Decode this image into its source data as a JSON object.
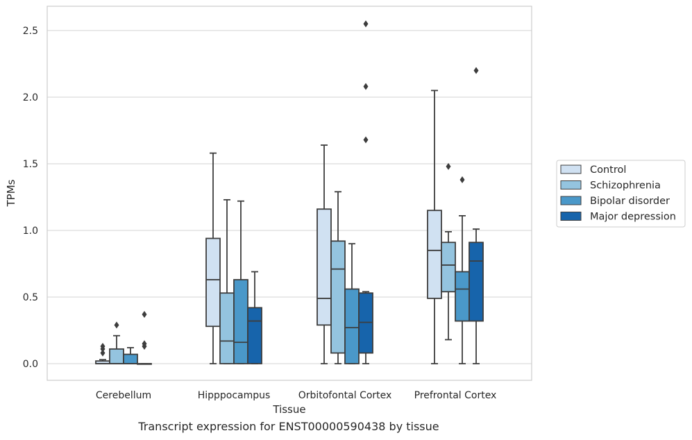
{
  "caption": "Transcript expression for ENST00000590438 by tissue",
  "chart_data": {
    "type": "box",
    "xlabel": "Tissue",
    "ylabel": "TPMs",
    "ylim": [
      -0.12,
      2.68
    ],
    "yticks": [
      0.0,
      0.5,
      1.0,
      1.5,
      2.0,
      2.5
    ],
    "ytick_labels": [
      "0.0",
      "0.5",
      "1.0",
      "1.5",
      "2.0",
      "2.5"
    ],
    "grid": "horizontal",
    "legend_position": "right",
    "categories": [
      "Cerebellum",
      "Hipppocampus",
      "Orbitofontal Cortex",
      "Prefrontal Cortex"
    ],
    "series": [
      {
        "name": "Control",
        "color": "#d0e1f2",
        "boxes": [
          {
            "q1": 0.0,
            "median": 0.0,
            "q3": 0.02,
            "whislo": 0.0,
            "whishi": 0.03,
            "fliers": [
              0.08,
              0.11,
              0.13
            ]
          },
          {
            "q1": 0.28,
            "median": 0.63,
            "q3": 0.94,
            "whislo": 0.0,
            "whishi": 1.58,
            "fliers": []
          },
          {
            "q1": 0.29,
            "median": 0.49,
            "q3": 1.16,
            "whislo": 0.0,
            "whishi": 1.64,
            "fliers": []
          },
          {
            "q1": 0.49,
            "median": 0.85,
            "q3": 1.15,
            "whislo": 0.0,
            "whishi": 2.05,
            "fliers": []
          }
        ]
      },
      {
        "name": "Schizophrenia",
        "color": "#94c4df",
        "boxes": [
          {
            "q1": 0.0,
            "median": 0.0,
            "q3": 0.11,
            "whislo": 0.0,
            "whishi": 0.21,
            "fliers": [
              0.29
            ]
          },
          {
            "q1": 0.0,
            "median": 0.17,
            "q3": 0.53,
            "whislo": 0.0,
            "whishi": 1.23,
            "fliers": []
          },
          {
            "q1": 0.08,
            "median": 0.71,
            "q3": 0.92,
            "whislo": 0.0,
            "whishi": 1.29,
            "fliers": []
          },
          {
            "q1": 0.54,
            "median": 0.74,
            "q3": 0.91,
            "whislo": 0.18,
            "whishi": 0.99,
            "fliers": [
              1.48
            ]
          }
        ]
      },
      {
        "name": "Bipolar disorder",
        "color": "#4a98c9",
        "boxes": [
          {
            "q1": 0.0,
            "median": 0.0,
            "q3": 0.07,
            "whislo": 0.0,
            "whishi": 0.12,
            "fliers": []
          },
          {
            "q1": 0.0,
            "median": 0.16,
            "q3": 0.63,
            "whislo": 0.0,
            "whishi": 1.22,
            "fliers": []
          },
          {
            "q1": 0.0,
            "median": 0.27,
            "q3": 0.56,
            "whislo": 0.0,
            "whishi": 0.9,
            "fliers": []
          },
          {
            "q1": 0.32,
            "median": 0.56,
            "q3": 0.69,
            "whislo": 0.0,
            "whishi": 1.11,
            "fliers": [
              1.38
            ]
          }
        ]
      },
      {
        "name": "Major depression",
        "color": "#1764ab",
        "boxes": [
          {
            "q1": 0.0,
            "median": 0.0,
            "q3": 0.0,
            "whislo": 0.0,
            "whishi": 0.0,
            "fliers": [
              0.13,
              0.15,
              0.37
            ]
          },
          {
            "q1": 0.0,
            "median": 0.32,
            "q3": 0.42,
            "whislo": 0.0,
            "whishi": 0.69,
            "fliers": []
          },
          {
            "q1": 0.08,
            "median": 0.31,
            "q3": 0.53,
            "whislo": 0.0,
            "whishi": 0.54,
            "fliers": [
              1.68,
              2.08,
              2.55
            ]
          },
          {
            "q1": 0.32,
            "median": 0.77,
            "q3": 0.91,
            "whislo": 0.0,
            "whishi": 1.01,
            "fliers": [
              2.2
            ]
          }
        ]
      }
    ]
  }
}
